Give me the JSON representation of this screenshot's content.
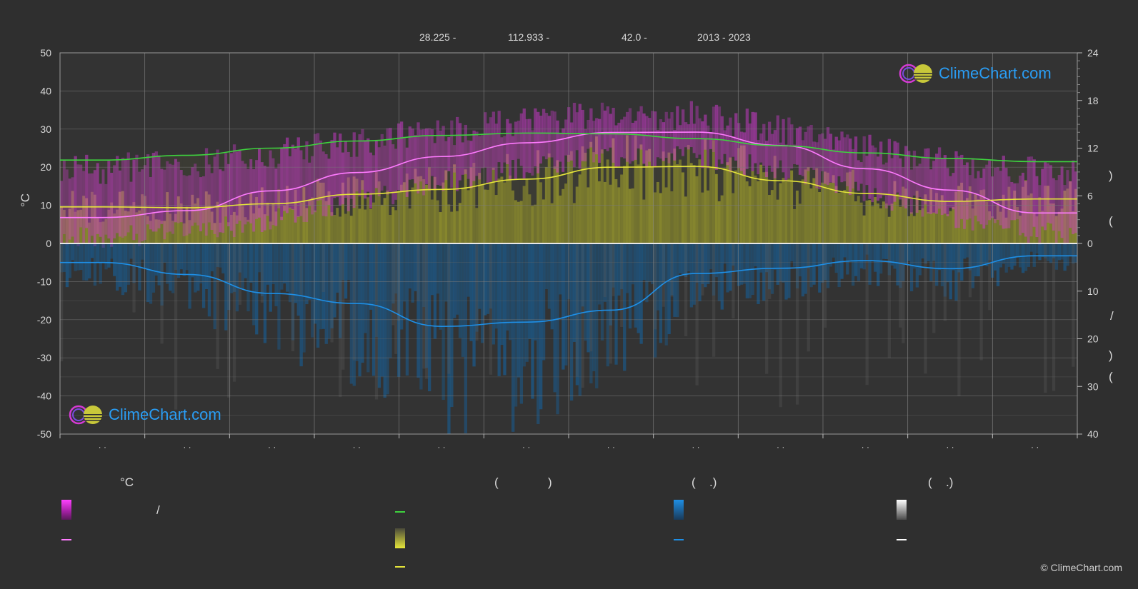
{
  "header": {
    "lat": "28.225 -",
    "lon": "112.933 -",
    "elev": "42.0 -",
    "years": "2013 - 2023"
  },
  "axes": {
    "left_unit": "°C",
    "left_ticks": [
      "50",
      "40",
      "30",
      "20",
      "10",
      "0",
      "-10",
      "-20",
      "-30",
      "-40",
      "-50"
    ],
    "right_top_ticks": [
      "24",
      "18",
      "12",
      "6",
      "0"
    ],
    "right_bottom_ticks": [
      "10",
      "20",
      "30",
      "40"
    ],
    "right_top_label": ")",
    "right_top_label2": "(",
    "right_bottom_label_a": "/",
    "right_bottom_label_b": ")",
    "right_bottom_label_c": "(",
    "month_ticks": [
      "· ·",
      "· ·",
      "· ·",
      "· ·",
      "· ·",
      "· ·",
      "· ·",
      "· ·",
      "· ·",
      "· ·",
      "· ·",
      "· ·"
    ]
  },
  "legend": {
    "col1_title": "°C",
    "col1_row1": "/",
    "col2_title_a": "(",
    "col2_title_b": ")",
    "col3_title_a": "(",
    "col3_title_b": ".)",
    "col4_title_a": "(",
    "col4_title_b": ".)"
  },
  "logo": {
    "text": "ClimeChart.com"
  },
  "copyright": "© ClimeChart.com",
  "colors": {
    "background": "#2f2f2f",
    "temp_band": "#d63ad6",
    "temp_line": "#ff7bff",
    "daylight": "#3ed33e",
    "sunshine_band": "#9a9a2c",
    "sunshine_line": "#e6e63a",
    "precip_band": "#1a5a8c",
    "precip_line": "#1e8fe6",
    "snow_line": "#ffffff"
  },
  "chart_data": {
    "type": "line",
    "x_unit": "month",
    "left_ylim": [
      -50,
      50
    ],
    "right_top_ylim": [
      0,
      24
    ],
    "right_bottom_ylim": [
      0,
      40
    ],
    "grid": true,
    "series": [
      {
        "key": "temp_mean",
        "axis": "left",
        "values": [
          6.8,
          8.6,
          13.8,
          18.6,
          22.8,
          26.4,
          29.1,
          29.2,
          25.7,
          19.6,
          14.0,
          8.0
        ]
      },
      {
        "key": "daylight_hours",
        "axis": "right_top",
        "values": [
          10.5,
          11.1,
          12.0,
          12.9,
          13.6,
          13.9,
          13.8,
          13.2,
          12.3,
          11.4,
          10.7,
          10.3
        ]
      },
      {
        "key": "sunshine_hours",
        "axis": "right_top",
        "values": [
          4.6,
          4.5,
          5.0,
          6.2,
          6.8,
          8.1,
          9.6,
          9.7,
          7.9,
          6.3,
          5.3,
          5.6
        ]
      },
      {
        "key": "precipitation_mm",
        "axis": "right_bottom",
        "values": [
          4.0,
          6.5,
          10.5,
          12.6,
          17.4,
          16.5,
          14.0,
          6.3,
          5.2,
          3.6,
          5.3,
          2.6
        ]
      }
    ],
    "temp_band": {
      "upper": [
        19.5,
        21.0,
        23.5,
        26.5,
        29.5,
        31.5,
        34.0,
        33.5,
        30.0,
        25.0,
        21.0,
        19.0
      ],
      "lower": [
        1.5,
        3.0,
        6.0,
        11.0,
        16.0,
        20.0,
        23.0,
        23.0,
        19.0,
        13.5,
        7.0,
        2.5
      ]
    }
  }
}
